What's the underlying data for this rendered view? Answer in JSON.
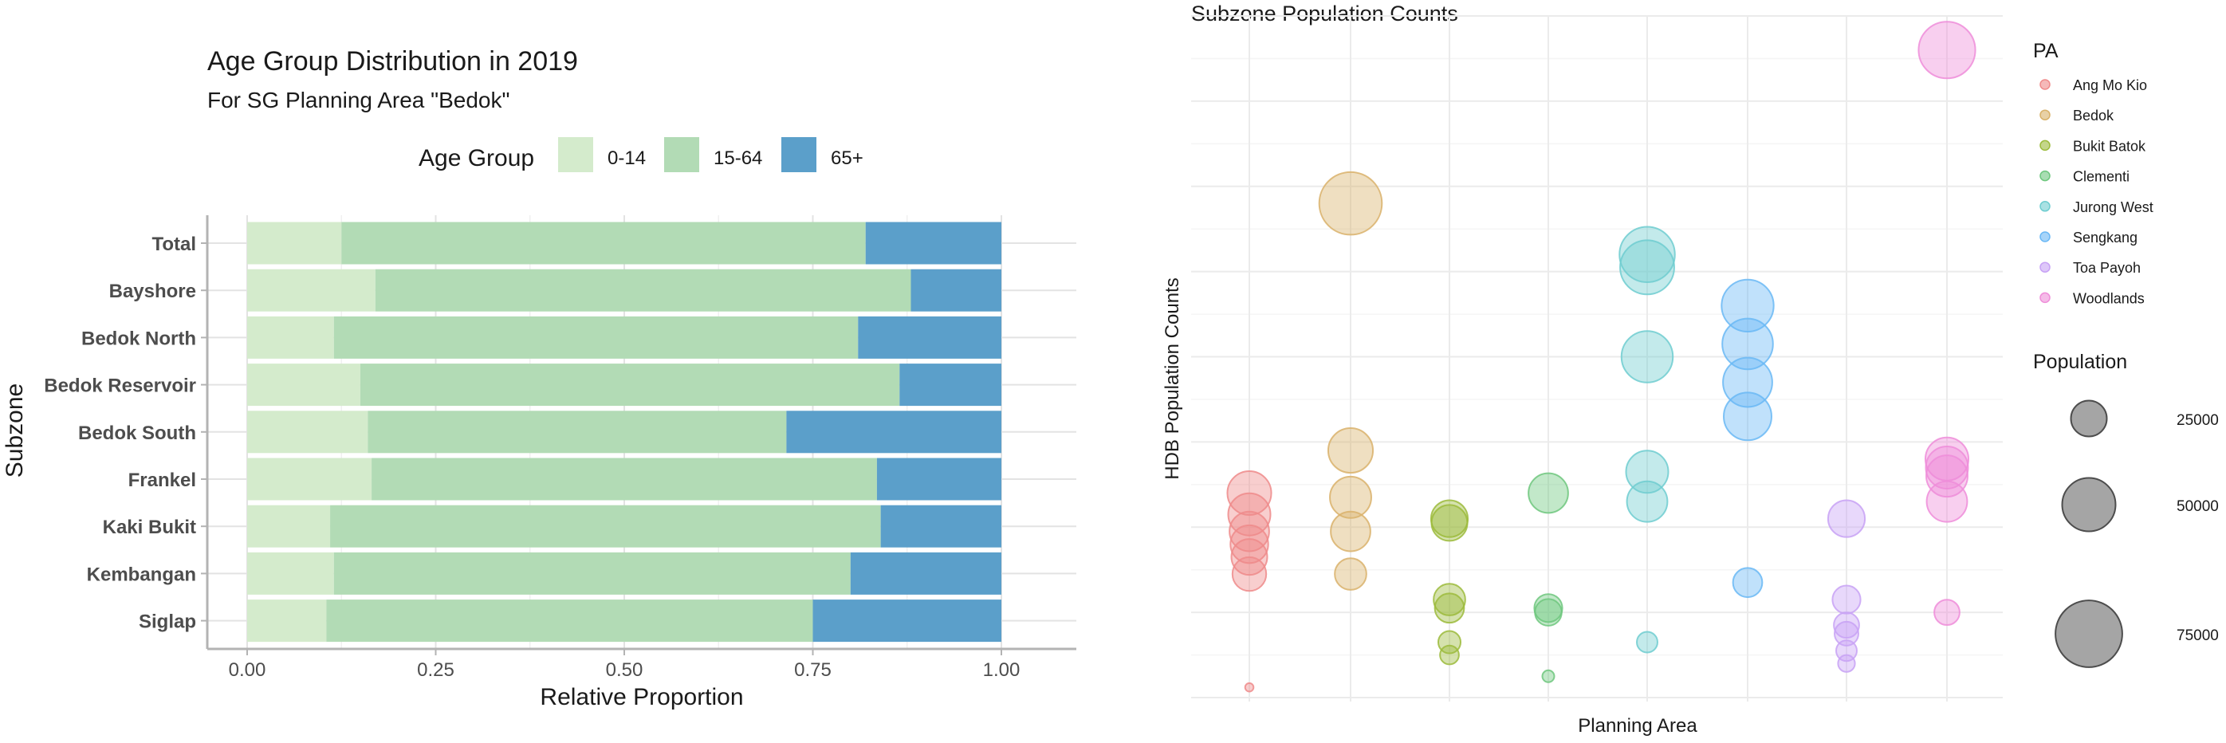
{
  "chart_data": [
    {
      "type": "bar",
      "stacked": true,
      "orientation": "horizontal",
      "title": "Age Group Distribution in 2019",
      "subtitle": "For SG Planning Area \"Bedok\"",
      "xlabel": "Relative Proportion",
      "ylabel": "Subzone",
      "xlim": [
        0,
        1
      ],
      "xticks": [
        "0.00",
        "0.25",
        "0.50",
        "0.75",
        "1.00"
      ],
      "legend_title": "Age Group",
      "legend_position": "top",
      "grid": true,
      "categories": [
        "Total",
        "Bayshore",
        "Bedok North",
        "Bedok Reservoir",
        "Bedok South",
        "Frankel",
        "Kaki Bukit",
        "Kembangan",
        "Siglap"
      ],
      "series": [
        {
          "name": "0-14",
          "color": "#d4ebcc",
          "values": [
            0.125,
            0.17,
            0.115,
            0.15,
            0.16,
            0.165,
            0.11,
            0.115,
            0.105
          ]
        },
        {
          "name": "15-64",
          "color": "#b2dbb5",
          "values": [
            0.695,
            0.71,
            0.695,
            0.715,
            0.555,
            0.67,
            0.73,
            0.685,
            0.645
          ]
        },
        {
          "name": "65+",
          "color": "#5b9fca",
          "values": [
            0.18,
            0.12,
            0.19,
            0.135,
            0.285,
            0.165,
            0.16,
            0.2,
            0.25
          ]
        }
      ]
    },
    {
      "type": "scatter",
      "title": "Subzone Population Counts",
      "xlabel": "Planning Area",
      "ylabel": "HDB Population Counts",
      "grid": true,
      "legend_position": "right",
      "categories": [
        "Ang Mo Kio",
        "Bedok",
        "Bukit Batok",
        "Clementi",
        "Jurong West",
        "Sengkang",
        "Toa Payoh",
        "Woodlands"
      ],
      "colors": [
        "#ef8b8b",
        "#d9b26b",
        "#9cbb3c",
        "#6ec77e",
        "#6fcdd0",
        "#6ab8f5",
        "#c8a2f5",
        "#ef8dd9"
      ],
      "color_legend": {
        "title": "PA",
        "labels": [
          "Ang Mo Kio",
          "Bedok",
          "Bukit Batok",
          "Clementi",
          "Jurong West",
          "Sengkang",
          "Toa Payoh",
          "Woodlands"
        ]
      },
      "size_legend": {
        "title": "Population",
        "values": [
          25000,
          50000,
          75000
        ],
        "labels": [
          "25000",
          "50000",
          "75000"
        ]
      },
      "ylim": [
        0,
        80000
      ],
      "points": [
        {
          "pa": 0,
          "y": 24000,
          "population": 27000
        },
        {
          "pa": 0,
          "y": 21500,
          "population": 25000
        },
        {
          "pa": 0,
          "y": 19500,
          "population": 22000
        },
        {
          "pa": 0,
          "y": 18000,
          "population": 20000
        },
        {
          "pa": 0,
          "y": 16500,
          "population": 18000
        },
        {
          "pa": 0,
          "y": 14500,
          "population": 16000
        },
        {
          "pa": 0,
          "y": 1200,
          "population": 1000
        },
        {
          "pa": 1,
          "y": 58000,
          "population": 55000
        },
        {
          "pa": 1,
          "y": 29000,
          "population": 28000
        },
        {
          "pa": 1,
          "y": 23500,
          "population": 24000
        },
        {
          "pa": 1,
          "y": 19500,
          "population": 22000
        },
        {
          "pa": 1,
          "y": 14500,
          "population": 14000
        },
        {
          "pa": 2,
          "y": 21000,
          "population": 19000
        },
        {
          "pa": 2,
          "y": 20500,
          "population": 18000
        },
        {
          "pa": 2,
          "y": 11500,
          "population": 14000
        },
        {
          "pa": 2,
          "y": 10500,
          "population": 12000
        },
        {
          "pa": 2,
          "y": 6500,
          "population": 7000
        },
        {
          "pa": 2,
          "y": 5000,
          "population": 5000
        },
        {
          "pa": 3,
          "y": 24000,
          "population": 22000
        },
        {
          "pa": 3,
          "y": 10500,
          "population": 11000
        },
        {
          "pa": 3,
          "y": 10000,
          "population": 10000
        },
        {
          "pa": 3,
          "y": 2500,
          "population": 2000
        },
        {
          "pa": 4,
          "y": 52000,
          "population": 43000
        },
        {
          "pa": 4,
          "y": 50500,
          "population": 41000
        },
        {
          "pa": 4,
          "y": 40000,
          "population": 37000
        },
        {
          "pa": 4,
          "y": 26500,
          "population": 25000
        },
        {
          "pa": 4,
          "y": 23000,
          "population": 23000
        },
        {
          "pa": 4,
          "y": 6500,
          "population": 6000
        },
        {
          "pa": 5,
          "y": 46000,
          "population": 38000
        },
        {
          "pa": 5,
          "y": 41500,
          "population": 36000
        },
        {
          "pa": 5,
          "y": 37000,
          "population": 34000
        },
        {
          "pa": 5,
          "y": 33000,
          "population": 32000
        },
        {
          "pa": 5,
          "y": 13500,
          "population": 12000
        },
        {
          "pa": 6,
          "y": 21000,
          "population": 19000
        },
        {
          "pa": 6,
          "y": 11500,
          "population": 11000
        },
        {
          "pa": 6,
          "y": 8500,
          "population": 9000
        },
        {
          "pa": 6,
          "y": 7500,
          "population": 8000
        },
        {
          "pa": 6,
          "y": 5500,
          "population": 6000
        },
        {
          "pa": 6,
          "y": 4000,
          "population": 4000
        },
        {
          "pa": 7,
          "y": 76000,
          "population": 45000
        },
        {
          "pa": 7,
          "y": 28000,
          "population": 26000
        },
        {
          "pa": 7,
          "y": 27000,
          "population": 25000
        },
        {
          "pa": 7,
          "y": 26000,
          "population": 24000
        },
        {
          "pa": 7,
          "y": 23000,
          "population": 23000
        },
        {
          "pa": 7,
          "y": 10000,
          "population": 9000
        }
      ]
    }
  ]
}
